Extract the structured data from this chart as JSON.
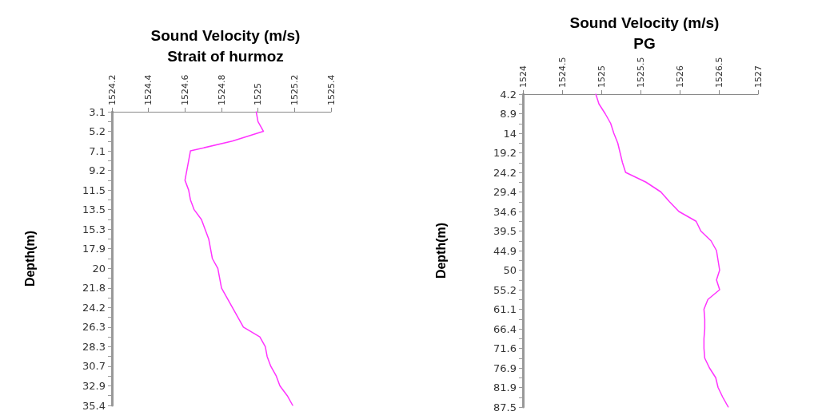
{
  "chart_data": [
    {
      "type": "line",
      "title": "Strait of hurmoz",
      "xlabel": "Sound Velocity (m/s)",
      "ylabel": "Depth(m)",
      "orientation": "horizontal",
      "marker": "none",
      "line_style": "solid",
      "color": "#ff33ff",
      "categories": [
        "3.1",
        null,
        "5.2",
        null,
        "7.1",
        null,
        "9.2",
        null,
        "11.5",
        null,
        "13.5",
        null,
        "15.3",
        null,
        "17.9",
        null,
        "20",
        null,
        "21.8",
        null,
        "24.2",
        null,
        "26.3",
        null,
        "28.3",
        null,
        "30.7",
        null,
        "32.9",
        null,
        "35.4"
      ],
      "values": [
        1524.99,
        1525.0,
        1525.03,
        1524.86,
        1524.63,
        1524.62,
        1524.61,
        1524.6,
        1524.62,
        1524.63,
        1524.65,
        1524.69,
        1524.71,
        1524.73,
        1524.74,
        1524.75,
        1524.78,
        1524.79,
        1524.8,
        1524.83,
        1524.86,
        1524.89,
        1524.92,
        1525.01,
        1525.04,
        1525.05,
        1525.07,
        1525.1,
        1525.12,
        1525.16,
        1525.19
      ],
      "xlim": [
        1524.2,
        1525.4
      ],
      "xticks": [
        1524.2,
        1524.4,
        1524.6,
        1524.8,
        1525,
        1525.2,
        1525.4
      ]
    },
    {
      "type": "line",
      "title": "PG",
      "xlabel": "Sound Velocity (m/s)",
      "ylabel": "Depth(m)",
      "orientation": "horizontal",
      "marker": "none",
      "line_style": "solid",
      "color": "#ff33ff",
      "categories": [
        "4.2",
        null,
        "8.9",
        null,
        "14",
        null,
        "19.2",
        null,
        "24.2",
        null,
        "29.4",
        null,
        "34.6",
        null,
        "39.5",
        null,
        "44.9",
        null,
        "50",
        null,
        "55.2",
        null,
        "61.1",
        null,
        "66.4",
        null,
        "71.6",
        null,
        "76.9",
        null,
        "81.9",
        null,
        "87.5"
      ],
      "values": [
        1524.93,
        1524.97,
        1525.05,
        1525.12,
        1525.16,
        1525.21,
        1525.24,
        1525.27,
        1525.31,
        1525.57,
        1525.76,
        1525.87,
        1525.99,
        1526.21,
        1526.27,
        1526.4,
        1526.47,
        1526.49,
        1526.51,
        1526.47,
        1526.51,
        1526.36,
        1526.31,
        1526.32,
        1526.32,
        1526.31,
        1526.31,
        1526.32,
        1526.38,
        1526.46,
        1526.49,
        1526.55,
        1526.62
      ],
      "xlim": [
        1524,
        1527
      ],
      "xticks": [
        1524,
        1524.5,
        1525,
        1525.5,
        1526,
        1526.5,
        1527
      ]
    }
  ]
}
